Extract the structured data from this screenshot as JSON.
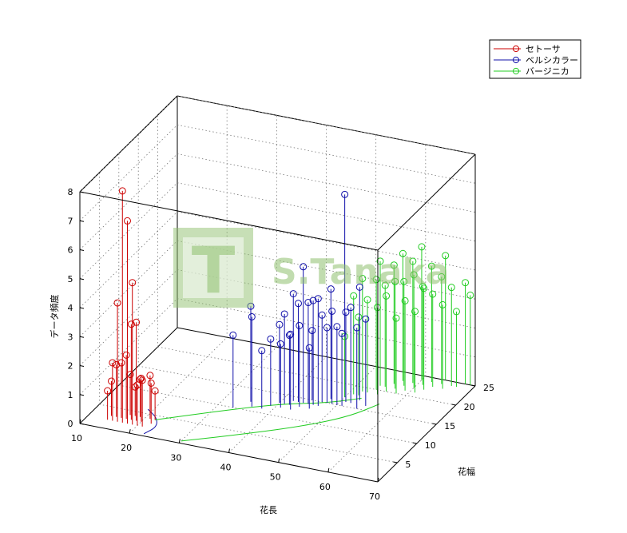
{
  "chart_data": {
    "type": "scatter",
    "title": "",
    "xlabel": "花長",
    "ylabel": "花幅",
    "zlabel": "データ頻度",
    "xlim": [
      10,
      70
    ],
    "ylim": [
      0,
      25
    ],
    "zlim": [
      0,
      8
    ],
    "xticks": [
      10,
      20,
      30,
      40,
      50,
      60,
      70
    ],
    "yticks": [
      5,
      10,
      15,
      20,
      25
    ],
    "zticks": [
      0,
      1,
      2,
      3,
      4,
      5,
      6,
      7,
      8
    ],
    "grid": true,
    "legend_position": "top-right",
    "marker": "circle-stem",
    "series": [
      {
        "name": "セトーサ",
        "color": "#cc0000",
        "points": [
          {
            "x": 14,
            "y": 2,
            "z": 1.0
          },
          {
            "x": 14,
            "y": 3,
            "z": 1.2
          },
          {
            "x": 15,
            "y": 2,
            "z": 2.0
          },
          {
            "x": 15,
            "y": 3,
            "z": 1.8
          },
          {
            "x": 16,
            "y": 2,
            "z": 4.1
          },
          {
            "x": 16,
            "y": 3,
            "z": 1.9
          },
          {
            "x": 17,
            "y": 2,
            "z": 8.0
          },
          {
            "x": 17,
            "y": 3,
            "z": 2.2
          },
          {
            "x": 17,
            "y": 4,
            "z": 1.4
          },
          {
            "x": 18,
            "y": 2,
            "z": 7.0
          },
          {
            "x": 18,
            "y": 3,
            "z": 3.3
          },
          {
            "x": 18,
            "y": 4,
            "z": 1.0
          },
          {
            "x": 19,
            "y": 2,
            "z": 4.9
          },
          {
            "x": 19,
            "y": 3,
            "z": 3.4
          },
          {
            "x": 19,
            "y": 4,
            "z": 1.3
          },
          {
            "x": 20,
            "y": 2,
            "z": 1.4
          },
          {
            "x": 20,
            "y": 3,
            "z": 1.5
          },
          {
            "x": 21,
            "y": 2,
            "z": 1.6
          },
          {
            "x": 21,
            "y": 4,
            "z": 1.5
          },
          {
            "x": 22,
            "y": 3,
            "z": 1.4
          },
          {
            "x": 22,
            "y": 4,
            "z": 1.0
          }
        ]
      },
      {
        "name": "ベルシカラー",
        "color": "#1010aa",
        "points": [
          {
            "x": 33,
            "y": 10,
            "z": 2.5
          },
          {
            "x": 35,
            "y": 12,
            "z": 3.3
          },
          {
            "x": 36,
            "y": 11,
            "z": 3.1
          },
          {
            "x": 38,
            "y": 11,
            "z": 2.0
          },
          {
            "x": 39,
            "y": 12,
            "z": 2.3
          },
          {
            "x": 40,
            "y": 13,
            "z": 2.7
          },
          {
            "x": 41,
            "y": 12,
            "z": 2.2
          },
          {
            "x": 41,
            "y": 13,
            "z": 3.1
          },
          {
            "x": 42,
            "y": 13,
            "z": 2.4
          },
          {
            "x": 42,
            "y": 14,
            "z": 3.7
          },
          {
            "x": 43,
            "y": 12,
            "z": 2.6
          },
          {
            "x": 43,
            "y": 14,
            "z": 3.4
          },
          {
            "x": 44,
            "y": 13,
            "z": 2.8
          },
          {
            "x": 44,
            "y": 14,
            "z": 4.7
          },
          {
            "x": 45,
            "y": 14,
            "z": 3.5
          },
          {
            "x": 45,
            "y": 15,
            "z": 2.4
          },
          {
            "x": 46,
            "y": 14,
            "z": 3.6
          },
          {
            "x": 46,
            "y": 13,
            "z": 2.1
          },
          {
            "x": 47,
            "y": 14,
            "z": 3.7
          },
          {
            "x": 47,
            "y": 15,
            "z": 3.0
          },
          {
            "x": 48,
            "y": 15,
            "z": 2.6
          },
          {
            "x": 48,
            "y": 16,
            "z": 3.8
          },
          {
            "x": 49,
            "y": 15,
            "z": 3.2
          },
          {
            "x": 50,
            "y": 15,
            "z": 2.7
          },
          {
            "x": 50,
            "y": 17,
            "z": 7.0
          },
          {
            "x": 51,
            "y": 16,
            "z": 3.1
          },
          {
            "x": 51,
            "y": 15,
            "z": 2.5
          },
          {
            "x": 52,
            "y": 16,
            "z": 3.3
          },
          {
            "x": 53,
            "y": 17,
            "z": 3.9
          },
          {
            "x": 54,
            "y": 15,
            "z": 2.8
          },
          {
            "x": 55,
            "y": 16,
            "z": 3.0
          }
        ]
      },
      {
        "name": "バージニカ",
        "color": "#22cc22",
        "points": [
          {
            "x": 50,
            "y": 17,
            "z": 2.1
          },
          {
            "x": 51,
            "y": 18,
            "z": 3.4
          },
          {
            "x": 52,
            "y": 18,
            "z": 2.7
          },
          {
            "x": 52,
            "y": 19,
            "z": 3.9
          },
          {
            "x": 53,
            "y": 19,
            "z": 3.2
          },
          {
            "x": 54,
            "y": 20,
            "z": 3.8
          },
          {
            "x": 54,
            "y": 21,
            "z": 4.3
          },
          {
            "x": 55,
            "y": 19,
            "z": 3.0
          },
          {
            "x": 55,
            "y": 21,
            "z": 3.5
          },
          {
            "x": 56,
            "y": 22,
            "z": 4.1
          },
          {
            "x": 56,
            "y": 20,
            "z": 3.3
          },
          {
            "x": 57,
            "y": 21,
            "z": 3.7
          },
          {
            "x": 57,
            "y": 23,
            "z": 4.4
          },
          {
            "x": 58,
            "y": 20,
            "z": 2.6
          },
          {
            "x": 58,
            "y": 22,
            "z": 3.6
          },
          {
            "x": 59,
            "y": 23,
            "z": 4.2
          },
          {
            "x": 59,
            "y": 21,
            "z": 3.1
          },
          {
            "x": 60,
            "y": 22,
            "z": 3.9
          },
          {
            "x": 60,
            "y": 24,
            "z": 4.6
          },
          {
            "x": 61,
            "y": 23,
            "z": 3.4
          },
          {
            "x": 61,
            "y": 21,
            "z": 2.8
          },
          {
            "x": 62,
            "y": 22,
            "z": 3.5
          },
          {
            "x": 62,
            "y": 24,
            "z": 4.0
          },
          {
            "x": 63,
            "y": 23,
            "z": 3.2
          },
          {
            "x": 64,
            "y": 24,
            "z": 3.7
          },
          {
            "x": 64,
            "y": 25,
            "z": 4.3
          },
          {
            "x": 65,
            "y": 23,
            "z": 2.9
          },
          {
            "x": 66,
            "y": 24,
            "z": 3.4
          },
          {
            "x": 67,
            "y": 24,
            "z": 2.6
          },
          {
            "x": 68,
            "y": 25,
            "z": 3.5
          },
          {
            "x": 69,
            "y": 25,
            "z": 3.1
          }
        ]
      }
    ],
    "boundaries": [
      {
        "color": "#1010aa",
        "points": [
          [
            19,
            6
          ],
          [
            22,
            4.5
          ],
          [
            23.5,
            2.5
          ],
          [
            22.5,
            0.5
          ]
        ]
      },
      {
        "color": "#22cc22",
        "points": [
          [
            22,
            4
          ],
          [
            33,
            9.5
          ],
          [
            41,
            13
          ],
          [
            48,
            15
          ],
          [
            53,
            17.5
          ]
        ]
      },
      {
        "color": "#22cc22",
        "points": [
          [
            30,
            0.5
          ],
          [
            40,
            5
          ],
          [
            48,
            9
          ],
          [
            54,
            13
          ],
          [
            57,
            17
          ]
        ]
      }
    ]
  },
  "watermark": {
    "text": "S.Tanaka",
    "logo_letter": "T"
  }
}
